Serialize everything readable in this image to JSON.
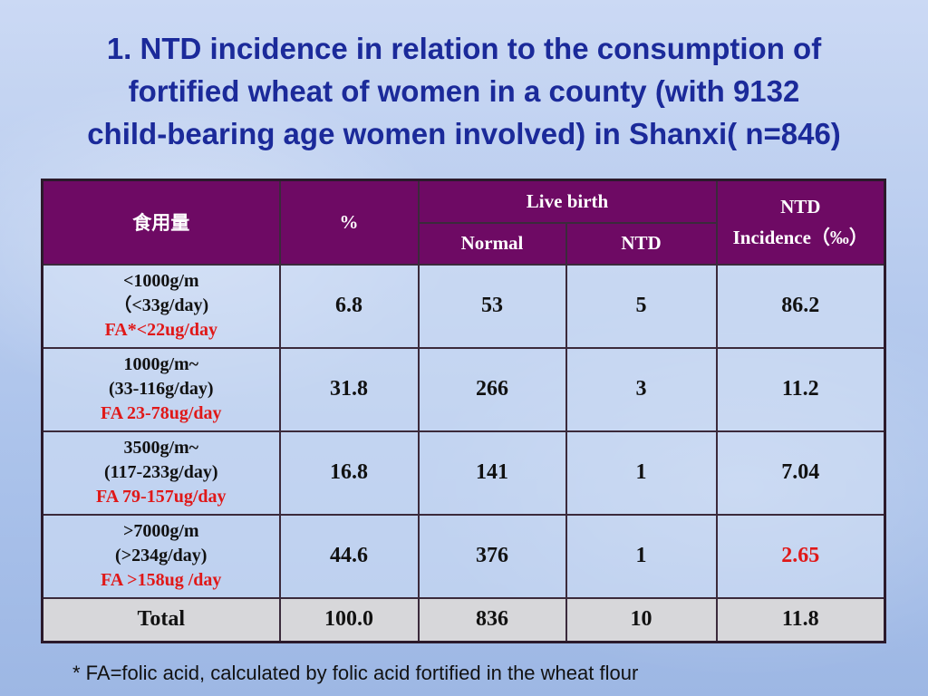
{
  "title": {
    "line1": "1.   NTD incidence in relation to the consumption of",
    "line2": "fortified wheat of women in a county (with 9132",
    "line3": "child-bearing age women involved) in Shanxi( n=846)"
  },
  "table": {
    "headers": {
      "col1": "食用量",
      "col2": "%",
      "live_birth": "Live birth",
      "normal": "Normal",
      "ntd": "NTD",
      "incidence_line1": "NTD",
      "incidence_line2": "Incidence（‰）"
    },
    "rows": [
      {
        "amount": "<1000g/m",
        "daily": "（<33g/day)",
        "fa": "FA*<22ug/day",
        "percent": "6.8",
        "normal": "53",
        "ntd": "5",
        "incidence": "86.2"
      },
      {
        "amount": "1000g/m~",
        "daily": "(33-116g/day)",
        "fa": "FA 23-78ug/day",
        "percent": "31.8",
        "normal": "266",
        "ntd": "3",
        "incidence": "11.2"
      },
      {
        "amount": "3500g/m~",
        "daily": "(117-233g/day)",
        "fa": "FA 79-157ug/day",
        "percent": "16.8",
        "normal": "141",
        "ntd": "1",
        "incidence": "7.04"
      },
      {
        "amount": ">7000g/m",
        "daily": "(>234g/day)",
        "fa": "FA >158ug /day",
        "percent": "44.6",
        "normal": "376",
        "ntd": "1",
        "incidence": "2.65"
      }
    ],
    "total": {
      "label": "Total",
      "percent": "100.0",
      "normal": "836",
      "ntd": "10",
      "incidence": "11.8"
    }
  },
  "footnote": "* FA=folic acid, calculated by folic acid fortified in the wheat flour",
  "colors": {
    "title": "#1b2a9a",
    "header_bg": "#6e0a64",
    "highlight_red": "#e01818",
    "total_bg": "#d7d7da"
  }
}
